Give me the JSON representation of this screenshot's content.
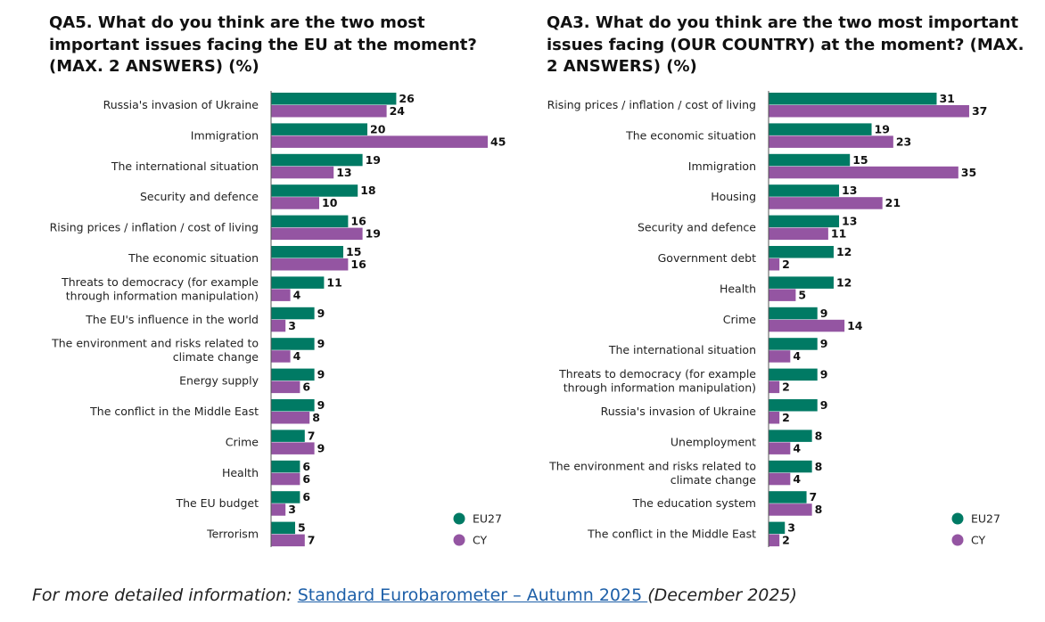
{
  "colors": {
    "EU27": "#007A64",
    "CY": "#9455A2"
  },
  "footer": {
    "prefix": "For more detailed information: ",
    "link_text": "Standard Eurobarometer – Autumn 2025 ",
    "suffix": "(December 2025)"
  },
  "chart_data": [
    {
      "type": "bar",
      "orientation": "horizontal",
      "title": "QA5. What do you think are the two most important issues facing the EU at the moment? (MAX. 2 ANSWERS) (%)",
      "categories": [
        [
          "Russia's invasion of Ukraine"
        ],
        [
          "Immigration"
        ],
        [
          "The international situation"
        ],
        [
          "Security and defence"
        ],
        [
          "Rising prices / inflation / cost of living"
        ],
        [
          "The economic situation"
        ],
        [
          "Threats to democracy (for example",
          "through information manipulation)"
        ],
        [
          "The EU's influence in the world"
        ],
        [
          "The environment and risks related to",
          "climate change"
        ],
        [
          "Energy supply"
        ],
        [
          "The conflict in the Middle East"
        ],
        [
          "Crime"
        ],
        [
          "Health"
        ],
        [
          "The EU budget"
        ],
        [
          "Terrorism"
        ]
      ],
      "series": [
        {
          "name": "EU27",
          "values": [
            26,
            20,
            19,
            18,
            16,
            15,
            11,
            9,
            9,
            9,
            9,
            7,
            6,
            6,
            5
          ]
        },
        {
          "name": "CY",
          "values": [
            24,
            45,
            13,
            10,
            19,
            16,
            4,
            3,
            4,
            6,
            8,
            9,
            6,
            3,
            7
          ]
        }
      ],
      "legend": "bottom-right",
      "xlim": [
        0,
        50
      ],
      "grid": false
    },
    {
      "type": "bar",
      "orientation": "horizontal",
      "title": "QA3. What do you think are the two most important issues facing (OUR COUNTRY) at the moment? (MAX. 2 ANSWERS) (%)",
      "categories": [
        [
          "Rising prices / inflation / cost of living"
        ],
        [
          "The economic situation"
        ],
        [
          "Immigration"
        ],
        [
          "Housing"
        ],
        [
          "Security and defence"
        ],
        [
          "Government debt"
        ],
        [
          "Health"
        ],
        [
          "Crime"
        ],
        [
          "The international situation"
        ],
        [
          "Threats to democracy (for example",
          "through information manipulation)"
        ],
        [
          "Russia's invasion of Ukraine"
        ],
        [
          "Unemployment"
        ],
        [
          "The environment and risks related to",
          "climate change"
        ],
        [
          "The education system"
        ],
        [
          "The conflict in the Middle East"
        ]
      ],
      "series": [
        {
          "name": "EU27",
          "values": [
            31,
            19,
            15,
            13,
            13,
            12,
            12,
            9,
            9,
            9,
            9,
            8,
            8,
            7,
            3
          ]
        },
        {
          "name": "CY",
          "values": [
            37,
            23,
            35,
            21,
            11,
            2,
            5,
            14,
            4,
            2,
            2,
            4,
            4,
            8,
            2
          ]
        }
      ],
      "legend": "bottom-right",
      "xlim": [
        0,
        40
      ],
      "grid": false
    }
  ]
}
